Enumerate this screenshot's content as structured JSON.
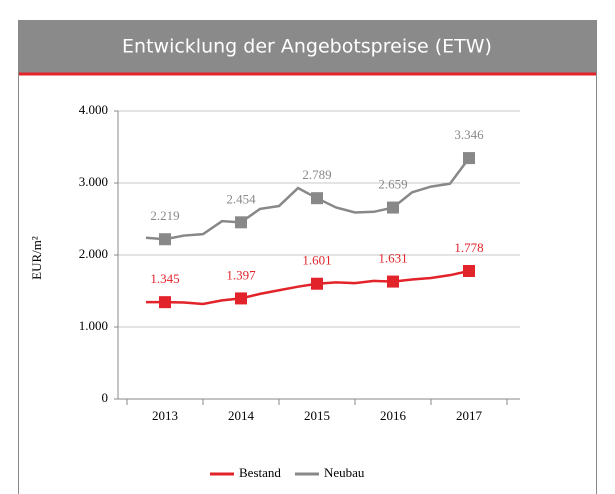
{
  "chart_data": {
    "type": "line",
    "title": "Entwicklung der Angebotspreise (ETW)",
    "y_label": "EUR/m²",
    "categories": [
      null,
      "2013",
      null,
      null,
      null,
      "2014",
      null,
      null,
      null,
      "2015",
      null,
      null,
      null,
      "2016",
      null,
      null,
      null,
      "2017"
    ],
    "series": [
      {
        "name": "Bestand",
        "color": "#e2232a",
        "values": [
          1345,
          1345,
          1340,
          1320,
          1370,
          1397,
          1460,
          1510,
          1560,
          1601,
          1620,
          1610,
          1640,
          1631,
          1660,
          1680,
          1720,
          1778
        ],
        "value_labels": [
          null,
          "1.345",
          null,
          null,
          null,
          "1.397",
          null,
          null,
          null,
          "1.601",
          null,
          null,
          null,
          "1.631",
          null,
          null,
          null,
          "1.778"
        ]
      },
      {
        "name": "Neubau",
        "color": "#888888",
        "values": [
          2240,
          2219,
          2270,
          2290,
          2470,
          2454,
          2640,
          2680,
          2930,
          2789,
          2660,
          2590,
          2600,
          2659,
          2870,
          2950,
          2990,
          3346
        ],
        "value_labels": [
          null,
          "2.219",
          null,
          null,
          null,
          "2.454",
          null,
          null,
          null,
          "2.789",
          null,
          null,
          null,
          "2.659",
          null,
          null,
          null,
          "3.346"
        ]
      }
    ],
    "ylim": [
      0,
      4000
    ],
    "yticks": [
      0,
      {
        "value": 1000,
        "label": "1.000"
      },
      {
        "value": 2000,
        "label": "2.000"
      },
      {
        "value": 3000,
        "label": "3.000"
      },
      {
        "value": 4000,
        "label": "4.000"
      }
    ],
    "grid": true,
    "legend": "bottom"
  }
}
